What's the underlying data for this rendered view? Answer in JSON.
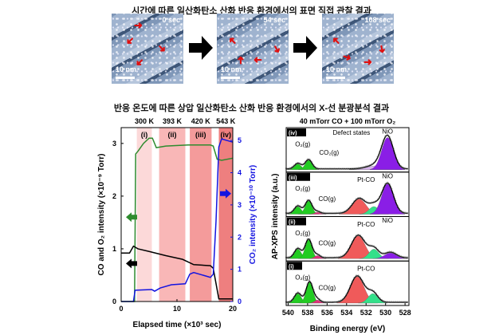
{
  "titles": {
    "top": "시간에 따른 일산화탄소 산화 반응 환경에서의 표면 직접 관찰 결과",
    "bottom": "반응 온도에 따른 상압 일산화탄소 산화 반응 환경에서의 X-선 분광분석 결과"
  },
  "stm_images": [
    {
      "time": "0 sec",
      "scale": "10 nm"
    },
    {
      "time": "54 sec",
      "scale": "10 nm"
    },
    {
      "time": "108 sec",
      "scale": "10 nm"
    }
  ],
  "colors": {
    "o2": "#2e8b2e",
    "co": "#000000",
    "co2": "#1414e0",
    "shade": [
      "#fcd9d9",
      "#f9b7b7",
      "#f49b9b",
      "#ee7f7f"
    ],
    "o2peak": "#22cc22",
    "copeak": "#e0307a",
    "ptco": "#f05a5a",
    "ptco2": "#33e08a",
    "nio": "#8a1ee6",
    "defect": "#d9b3f0"
  },
  "chart_data": [
    {
      "type": "line",
      "xlabel": "Elapsed time (×10³ sec)",
      "ylabel": "CO and O₂ intensity (×10⁻⁹ Torr)",
      "ylabel_right": "CO₂ intensity (×10⁻¹⁰ Torr)",
      "xlim": [
        0,
        20
      ],
      "ylim": [
        0,
        3.3
      ],
      "ylim_right": [
        0,
        5.4
      ],
      "xticks": [
        "0",
        "10",
        "20"
      ],
      "yticks": [
        "0",
        "1",
        "2",
        "3"
      ],
      "yticks_right": [
        "0",
        "1",
        "2",
        "3",
        "4",
        "5"
      ],
      "regions": [
        {
          "label": "(i)",
          "temp": "300 K",
          "x": [
            2.8,
            5.5
          ]
        },
        {
          "label": "(ii)",
          "temp": "393 K",
          "x": [
            6.8,
            11.5
          ]
        },
        {
          "label": "(iii)",
          "temp": "420 K",
          "x": [
            12.3,
            16.2
          ]
        },
        {
          "label": "(iv)",
          "temp": "543 K",
          "x": [
            17.5,
            20
          ]
        }
      ],
      "series": [
        {
          "name": "O2",
          "axis": "left",
          "points": [
            [
              0,
              0
            ],
            [
              2.4,
              0
            ],
            [
              2.6,
              2.8
            ],
            [
              3,
              2.85
            ],
            [
              4,
              3.0
            ],
            [
              5,
              3.1
            ],
            [
              5.6,
              3.1
            ],
            [
              6.3,
              2.92
            ],
            [
              8,
              2.95
            ],
            [
              12,
              2.97
            ],
            [
              16,
              2.97
            ],
            [
              16.5,
              2.95
            ],
            [
              17.2,
              2.7
            ],
            [
              18,
              2.68
            ],
            [
              20,
              2.72
            ]
          ]
        },
        {
          "name": "CO",
          "axis": "left",
          "points": [
            [
              0,
              0.92
            ],
            [
              1.5,
              0.92
            ],
            [
              2.2,
              1.05
            ],
            [
              3,
              1.0
            ],
            [
              5,
              0.95
            ],
            [
              8,
              0.87
            ],
            [
              11,
              0.8
            ],
            [
              12,
              0.75
            ],
            [
              13,
              0.7
            ],
            [
              16,
              0.68
            ],
            [
              16.5,
              0.63
            ],
            [
              17.5,
              0.05
            ],
            [
              20,
              0.05
            ]
          ]
        },
        {
          "name": "CO2",
          "axis": "right",
          "points": [
            [
              0,
              0
            ],
            [
              2.2,
              0
            ],
            [
              2.5,
              0.35
            ],
            [
              5.5,
              0.37
            ],
            [
              6,
              0.32
            ],
            [
              7,
              0.42
            ],
            [
              9,
              0.52
            ],
            [
              11.5,
              0.55
            ],
            [
              12.3,
              0.85
            ],
            [
              13,
              0.9
            ],
            [
              16,
              0.75
            ],
            [
              16.5,
              0.85
            ],
            [
              17,
              2.5
            ],
            [
              17.5,
              4.8
            ],
            [
              18,
              5.05
            ],
            [
              20,
              4.95
            ]
          ]
        }
      ]
    },
    {
      "type": "area",
      "title": "40 mTorr CO + 100 mTorr O₂",
      "xlabel": "Binding energy (eV)",
      "ylabel": "AP-XPS intensity (a.u.)",
      "xlim": [
        540.2,
        527.6
      ],
      "xticks": [
        "540",
        "538",
        "536",
        "534",
        "532",
        "530",
        "528"
      ],
      "panels": [
        {
          "label": "(iv)",
          "annotations": [
            "O₂(g)",
            "CO₂(g)",
            "Defect states",
            "NiO"
          ],
          "peaks": [
            {
              "c": 539,
              "h": 0.15,
              "s": 0.35,
              "k": "o2peak"
            },
            {
              "c": 537.9,
              "h": 0.25,
              "s": 0.35,
              "k": "o2peak"
            },
            {
              "c": 531,
              "h": 0.1,
              "s": 0.9,
              "k": "defect"
            },
            {
              "c": 529.8,
              "h": 0.85,
              "s": 0.6,
              "k": "nio"
            }
          ]
        },
        {
          "label": "(iii)",
          "annotations": [
            "O₂(g)",
            "CO(g)",
            "Pt-CO",
            "NiO"
          ],
          "peaks": [
            {
              "c": 539,
              "h": 0.2,
              "s": 0.35,
              "k": "o2peak"
            },
            {
              "c": 537.9,
              "h": 0.35,
              "s": 0.35,
              "k": "o2peak"
            },
            {
              "c": 537,
              "h": 0.05,
              "s": 0.3,
              "k": "copeak"
            },
            {
              "c": 532.7,
              "h": 0.4,
              "s": 0.7,
              "k": "ptco"
            },
            {
              "c": 531.2,
              "h": 0.2,
              "s": 0.5,
              "k": "ptco2"
            },
            {
              "c": 529.8,
              "h": 0.8,
              "s": 0.6,
              "k": "nio"
            }
          ]
        },
        {
          "label": "(ii)",
          "annotations": [
            "O₂(g)",
            "CO(g)",
            "Pt-CO",
            "NiO"
          ],
          "peaks": [
            {
              "c": 539,
              "h": 0.25,
              "s": 0.35,
              "k": "o2peak"
            },
            {
              "c": 537.9,
              "h": 0.5,
              "s": 0.35,
              "k": "o2peak"
            },
            {
              "c": 537,
              "h": 0.08,
              "s": 0.3,
              "k": "copeak"
            },
            {
              "c": 532.8,
              "h": 0.6,
              "s": 0.7,
              "k": "ptco"
            },
            {
              "c": 531.2,
              "h": 0.25,
              "s": 0.5,
              "k": "ptco2"
            },
            {
              "c": 529.5,
              "h": 0.15,
              "s": 0.6,
              "k": "nio"
            }
          ]
        },
        {
          "label": "(i)",
          "annotations": [
            "O₂(g)",
            "CO(g)",
            "Pt-CO"
          ],
          "peaks": [
            {
              "c": 539,
              "h": 0.25,
              "s": 0.35,
              "k": "o2peak"
            },
            {
              "c": 537.8,
              "h": 0.55,
              "s": 0.35,
              "k": "o2peak"
            },
            {
              "c": 537,
              "h": 0.08,
              "s": 0.3,
              "k": "copeak"
            },
            {
              "c": 532.9,
              "h": 0.7,
              "s": 0.7,
              "k": "ptco"
            },
            {
              "c": 531.3,
              "h": 0.25,
              "s": 0.5,
              "k": "ptco2"
            }
          ]
        }
      ]
    }
  ]
}
